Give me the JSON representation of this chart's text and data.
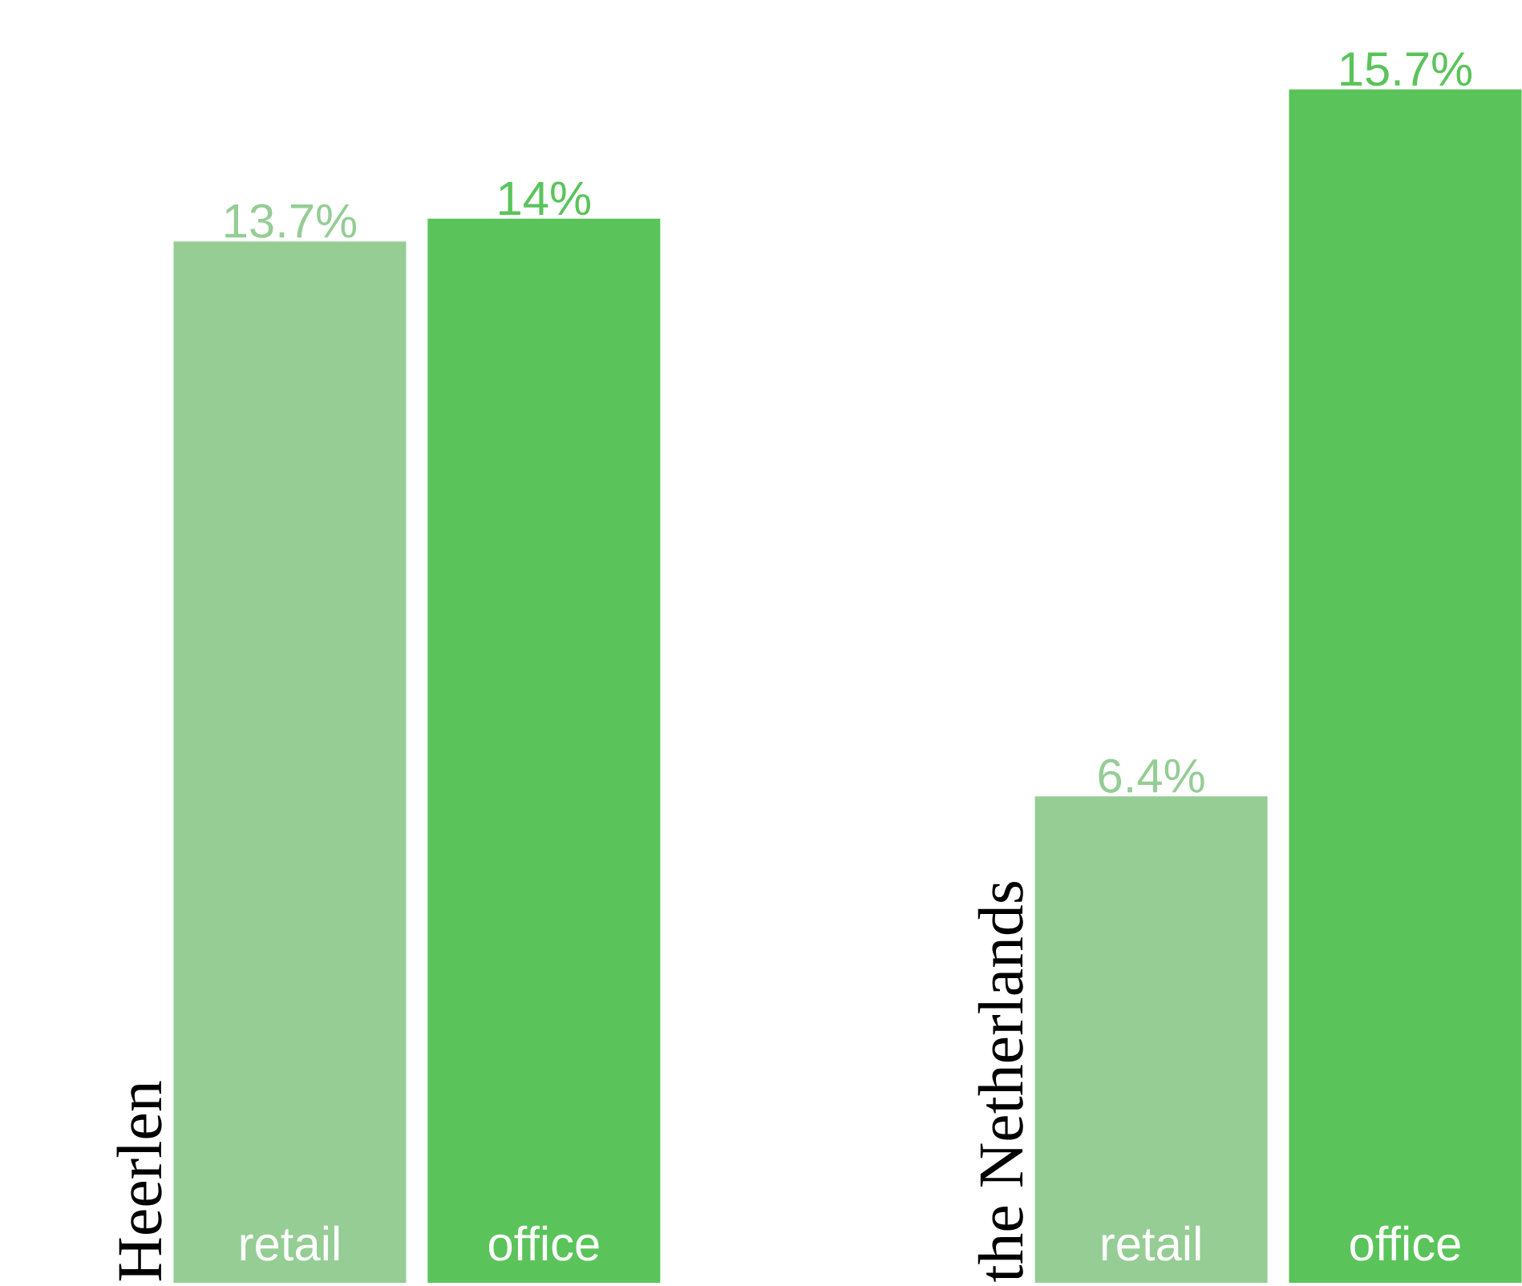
{
  "chart_data": {
    "type": "bar",
    "categories": [
      "Heerlen",
      "the Netherlands"
    ],
    "series": [
      {
        "name": "retail",
        "color": "#95cd95",
        "values": [
          13.7,
          6.4
        ],
        "value_labels": [
          "13.7%",
          "6.4%"
        ]
      },
      {
        "name": "office",
        "color": "#5ac45a",
        "values": [
          14,
          15.7
        ],
        "value_labels": [
          "14%",
          "15.7%"
        ]
      }
    ]
  }
}
